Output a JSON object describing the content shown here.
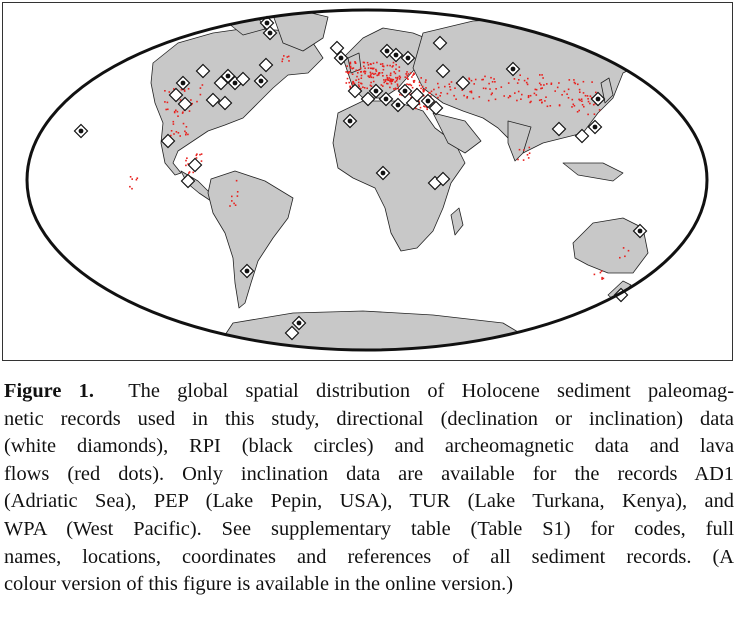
{
  "figure": {
    "label": "Figure 1.",
    "caption_lines": [
      "The global spatial distribution of Holocene sediment paleomag-",
      "netic records used in this study, directional (declination or inclination) data",
      "(white diamonds), RPI (black circles) and archeomagnetic data and lava",
      "flows (red dots). Only inclination data are available for the records AD1",
      "(Adriatic Sea), PEP (Lake Pepin, USA), TUR (Lake Turkana, Kenya), and",
      "WPA (West Pacific). See supplementary table (Table S1) for codes, full",
      "names, locations, coordinates and references of all sediment records. (A",
      "colour version of this figure is available in the online version.)"
    ]
  },
  "map": {
    "projection": "global oval projection",
    "colors": {
      "ocean": "#ffffff",
      "land": "#c8c8c8",
      "outline": "#111111",
      "archeomagnetic_dot": "#e8211e",
      "diamond_fill": "#ffffff",
      "rpi_circle": "#111111"
    },
    "legend_symbols": [
      "white diamonds",
      "black circles",
      "red dots"
    ]
  }
}
